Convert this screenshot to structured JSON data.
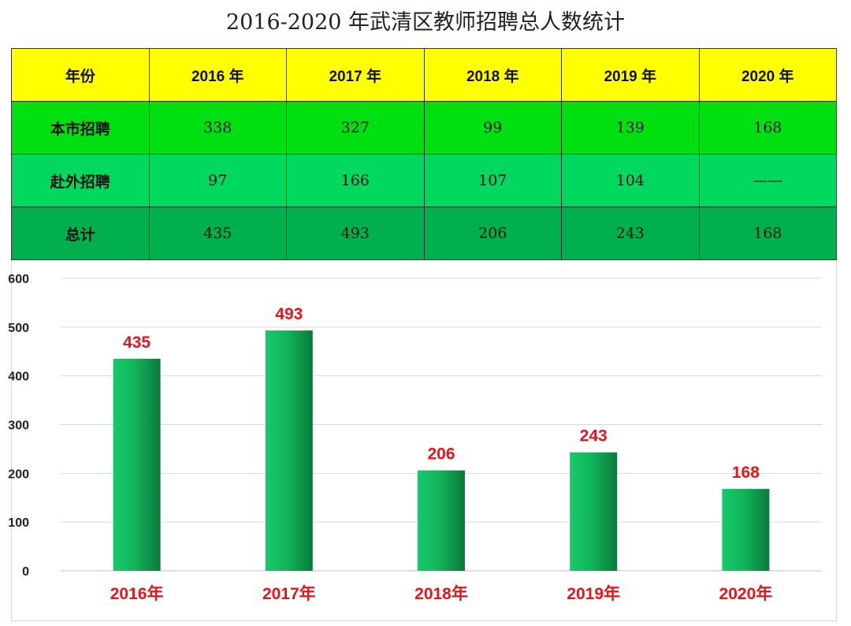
{
  "page": {
    "title": "2016-2020 年武清区教师招聘总人数统计"
  },
  "table": {
    "header": [
      "年份",
      "2016 年",
      "2017 年",
      "2018 年",
      "2019 年",
      "2020 年"
    ],
    "rows": [
      {
        "label": "本市招聘",
        "cells": [
          "338",
          "327",
          "99",
          "139",
          "168"
        ]
      },
      {
        "label": "赴外招聘",
        "cells": [
          "97",
          "166",
          "107",
          "104",
          "——"
        ]
      },
      {
        "label": "总计",
        "cells": [
          "435",
          "493",
          "206",
          "243",
          "168"
        ]
      }
    ],
    "colors": {
      "header": "#ffff00",
      "local": "#00e010",
      "outside": "#00d860",
      "total": "#00b04e"
    }
  },
  "chart_data": {
    "type": "bar",
    "categories": [
      "2016年",
      "2017年",
      "2018年",
      "2019年",
      "2020年"
    ],
    "values": [
      435,
      493,
      206,
      243,
      168
    ],
    "yticks": [
      "0",
      "100",
      "200",
      "300",
      "400",
      "500",
      "600"
    ],
    "ylim": [
      0,
      600
    ],
    "grid": true,
    "colors": {
      "bar_light": "#17c96a",
      "bar_dark": "#0a7a3a",
      "label": "#e8141a"
    }
  }
}
